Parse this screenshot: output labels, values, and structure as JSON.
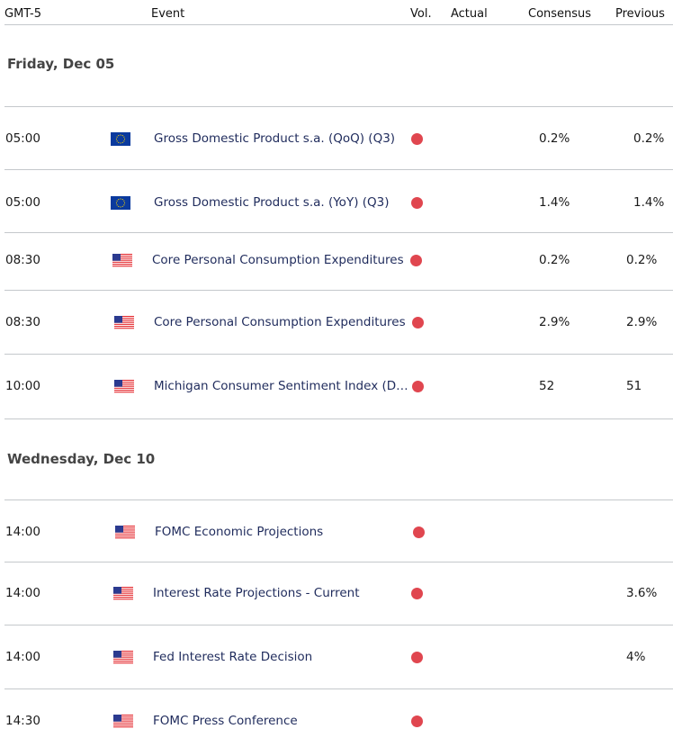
{
  "header": {
    "timezone": "GMT-5",
    "event": "Event",
    "vol": "Vol.",
    "actual": "Actual",
    "consensus": "Consensus",
    "previous": "Previous"
  },
  "colors": {
    "volatility_high": "#e0464f",
    "event_text": "#1f2b5c"
  },
  "days": [
    {
      "label": "Friday, Dec 05",
      "events": [
        {
          "time": "05:00",
          "flag": "eu-flag-icon",
          "name": "Gross Domestic Product s.a. (QoQ) (Q3)",
          "actual": "",
          "consensus": "0.2%",
          "previous": "0.2%"
        },
        {
          "time": "05:00",
          "flag": "eu-flag-icon",
          "name": "Gross Domestic Product s.a. (YoY) (Q3)",
          "actual": "",
          "consensus": "1.4%",
          "previous": "1.4%"
        },
        {
          "time": "08:30",
          "flag": "us-flag-icon",
          "name": "Core Personal Consumption Expenditures",
          "actual": "",
          "consensus": "0.2%",
          "previous": "0.2%"
        },
        {
          "time": "08:30",
          "flag": "us-flag-icon",
          "name": "Core Personal Consumption Expenditures",
          "actual": "",
          "consensus": "2.9%",
          "previous": "2.9%"
        },
        {
          "time": "10:00",
          "flag": "us-flag-icon",
          "name": "Michigan Consumer Sentiment Index (Dec)",
          "actual": "",
          "consensus": "52",
          "previous": "51"
        }
      ]
    },
    {
      "label": "Wednesday, Dec 10",
      "events": [
        {
          "time": "14:00",
          "flag": "us-flag-icon",
          "name": "FOMC Economic Projections",
          "actual": "",
          "consensus": "",
          "previous": ""
        },
        {
          "time": "14:00",
          "flag": "us-flag-icon",
          "name": "Interest Rate Projections - Current",
          "actual": "",
          "consensus": "",
          "previous": "3.6%"
        },
        {
          "time": "14:00",
          "flag": "us-flag-icon",
          "name": "Fed Interest Rate Decision",
          "actual": "",
          "consensus": "",
          "previous": "4%"
        },
        {
          "time": "14:30",
          "flag": "us-flag-icon",
          "name": "FOMC Press Conference",
          "actual": "",
          "consensus": "",
          "previous": ""
        }
      ]
    }
  ]
}
